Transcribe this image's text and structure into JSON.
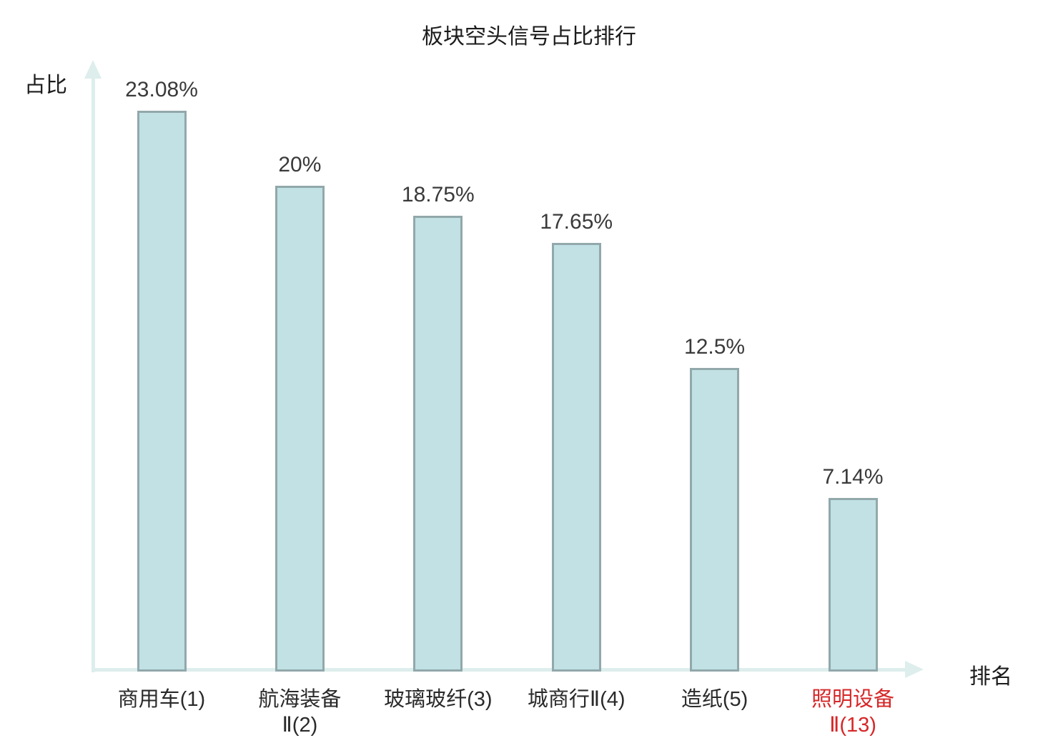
{
  "title": "板块空头信号占比排行",
  "y_axis_label": "占比",
  "x_axis_label": "排名",
  "chart_data": {
    "type": "bar",
    "title": "板块空头信号占比排行",
    "xlabel": "排名",
    "ylabel": "占比",
    "categories": [
      "商用车(1)",
      "航海装备\nⅡ(2)",
      "玻璃玻纤(3)",
      "城商行Ⅱ(4)",
      "造纸(5)",
      "照明设备\nⅡ(13)"
    ],
    "values": [
      23.08,
      20,
      18.75,
      17.65,
      12.5,
      7.14
    ],
    "value_labels": [
      "23.08%",
      "20%",
      "18.75%",
      "17.65%",
      "12.5%",
      "7.14%"
    ],
    "ylim": [
      0,
      25
    ],
    "grid": false,
    "legend": false,
    "highlighted_category_index": 5,
    "colors": {
      "bar_fill": "#c1e1e4",
      "bar_border": "#92a8ab",
      "axis": "#ddeeec",
      "value_text": "#3a3a3a",
      "category_text": "#2a2a2a",
      "highlight_text": "#d62728"
    }
  }
}
